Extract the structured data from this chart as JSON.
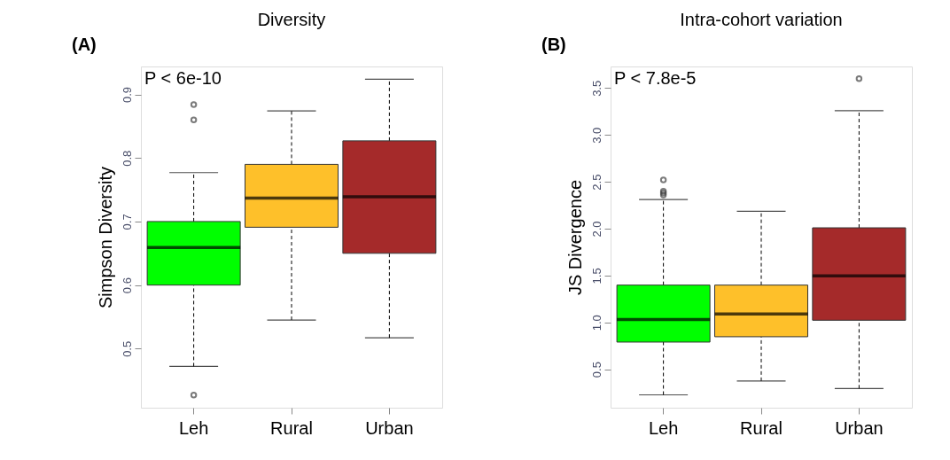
{
  "chart_data": [
    {
      "type": "box",
      "title": "Diversity",
      "ylabel": "Simpson Diversity",
      "annotations": [
        "(A)",
        "P < 6e-10"
      ],
      "categories": [
        "Leh",
        "Rural",
        "Urban"
      ],
      "colors": [
        "#00ff00",
        "#fec02a",
        "#a52a2a"
      ],
      "ylim": [
        0.407,
        0.944
      ],
      "yticks": [
        0.5,
        0.6,
        0.7,
        0.8,
        0.9
      ],
      "grid": false,
      "boxes": [
        {
          "low": 0.472,
          "q1": 0.6,
          "median": 0.659,
          "q3": 0.7,
          "high": 0.777,
          "outliers": [
            0.884,
            0.86,
            0.427
          ]
        },
        {
          "low": 0.545,
          "q1": 0.691,
          "median": 0.737,
          "q3": 0.79,
          "high": 0.874
        },
        {
          "low": 0.517,
          "q1": 0.65,
          "median": 0.739,
          "q3": 0.827,
          "high": 0.924
        }
      ]
    },
    {
      "type": "box",
      "title": "Intra-cohort variation",
      "ylabel": "JS Divergence",
      "annotations": [
        "(B)",
        "P < 7.8e-5"
      ],
      "categories": [
        "Leh",
        "Rural",
        "Urban"
      ],
      "colors": [
        "#00ff00",
        "#fec02a",
        "#a52a2a"
      ],
      "ylim": [
        0.09,
        3.73
      ],
      "yticks": [
        0.5,
        {
          "value": 1,
          "label": "1.0"
        },
        1.5,
        {
          "value": 2,
          "label": "2.0"
        },
        2.5,
        {
          "value": 3,
          "label": "3.0"
        },
        3.5
      ],
      "grid": false,
      "boxes": [
        {
          "low": 0.227,
          "q1": 0.79,
          "median": 1.031,
          "q3": 1.398,
          "high": 2.31,
          "outliers": [
            2.52,
            2.4,
            2.38,
            2.36
          ]
        },
        {
          "low": 0.375,
          "q1": 0.847,
          "median": 1.091,
          "q3": 1.398,
          "high": 2.185
        },
        {
          "low": 0.295,
          "q1": 1.023,
          "median": 1.497,
          "q3": 2.009,
          "high": 3.259,
          "outliers": [
            3.599
          ]
        }
      ]
    }
  ]
}
